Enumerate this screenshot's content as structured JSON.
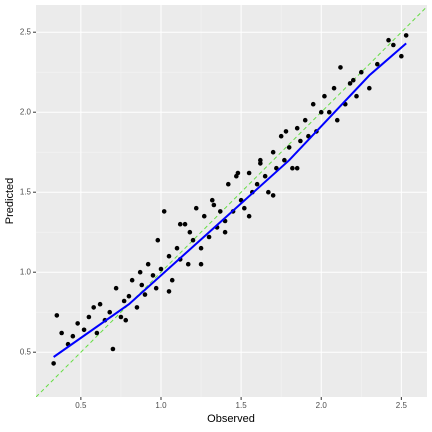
{
  "chart_data": {
    "type": "scatter",
    "x_label": "Observed",
    "y_label": "Predicted",
    "xlim": [
      0.22,
      2.66
    ],
    "ylim": [
      0.22,
      2.67
    ],
    "xticks": [
      0.5,
      {
        "value": 1,
        "label": "1.0"
      },
      1.5,
      {
        "value": 2,
        "label": "2.0"
      },
      2.5
    ],
    "yticks": [
      0.5,
      {
        "value": 1,
        "label": "1.0"
      },
      1.5,
      {
        "value": 2,
        "label": "2.0"
      },
      2.5
    ],
    "grid": true,
    "reference_line": {
      "slope": 1,
      "intercept": 0,
      "color": "#66dd44",
      "dashed": true
    },
    "series": [
      {
        "type": "scatter",
        "color": "#000000",
        "x": [
          0.33,
          0.35,
          0.38,
          0.42,
          0.45,
          0.48,
          0.52,
          0.55,
          0.58,
          0.6,
          0.62,
          0.65,
          0.68,
          0.7,
          0.72,
          0.75,
          0.77,
          0.8,
          0.82,
          0.85,
          0.87,
          0.9,
          0.92,
          0.95,
          0.97,
          1.0,
          1.02,
          1.05,
          1.07,
          1.1,
          1.12,
          1.15,
          1.17,
          1.2,
          1.22,
          1.25,
          1.27,
          1.3,
          1.32,
          1.35,
          1.37,
          1.4,
          1.42,
          1.45,
          1.47,
          1.5,
          1.52,
          1.55,
          1.57,
          1.6,
          1.62,
          1.65,
          1.67,
          1.7,
          1.72,
          1.75,
          1.77,
          1.8,
          1.82,
          1.85,
          1.87,
          1.9,
          1.92,
          1.95,
          1.97,
          2.0,
          2.02,
          2.05,
          2.08,
          2.1,
          2.12,
          2.15,
          2.18,
          2.2,
          2.22,
          2.25,
          2.3,
          2.35,
          2.42,
          2.45,
          2.5,
          2.53,
          0.98,
          1.05,
          1.12,
          1.25,
          1.33,
          1.4,
          1.48,
          1.55,
          1.62,
          1.7,
          1.78,
          1.85,
          0.88,
          0.78,
          1.18
        ],
        "values": [
          0.43,
          0.73,
          0.62,
          0.55,
          0.6,
          0.68,
          0.64,
          0.72,
          0.78,
          0.62,
          0.8,
          0.7,
          0.75,
          0.52,
          0.9,
          0.72,
          0.82,
          0.85,
          0.95,
          0.78,
          1.0,
          0.86,
          1.05,
          0.98,
          0.9,
          1.02,
          1.38,
          1.1,
          0.95,
          1.15,
          1.08,
          1.3,
          1.05,
          1.2,
          1.4,
          1.15,
          1.35,
          1.22,
          1.45,
          1.28,
          1.38,
          1.32,
          1.55,
          1.38,
          1.6,
          1.45,
          1.4,
          1.62,
          1.5,
          1.55,
          1.7,
          1.6,
          1.5,
          1.75,
          1.65,
          1.85,
          1.7,
          1.78,
          1.65,
          1.9,
          1.82,
          1.95,
          1.85,
          2.05,
          1.88,
          2.0,
          2.1,
          2.0,
          2.15,
          1.95,
          2.28,
          2.05,
          2.18,
          2.2,
          2.1,
          2.25,
          2.15,
          2.3,
          2.45,
          2.42,
          2.35,
          2.48,
          1.2,
          0.88,
          1.3,
          1.05,
          1.42,
          1.25,
          1.62,
          1.35,
          1.68,
          1.48,
          1.88,
          1.65,
          0.92,
          0.7,
          1.25
        ]
      },
      {
        "type": "line",
        "color": "#0000ff",
        "x": [
          0.33,
          0.8,
          1.3,
          1.8,
          2.3,
          2.53
        ],
        "values": [
          0.47,
          0.8,
          1.25,
          1.7,
          2.23,
          2.43
        ]
      }
    ]
  }
}
